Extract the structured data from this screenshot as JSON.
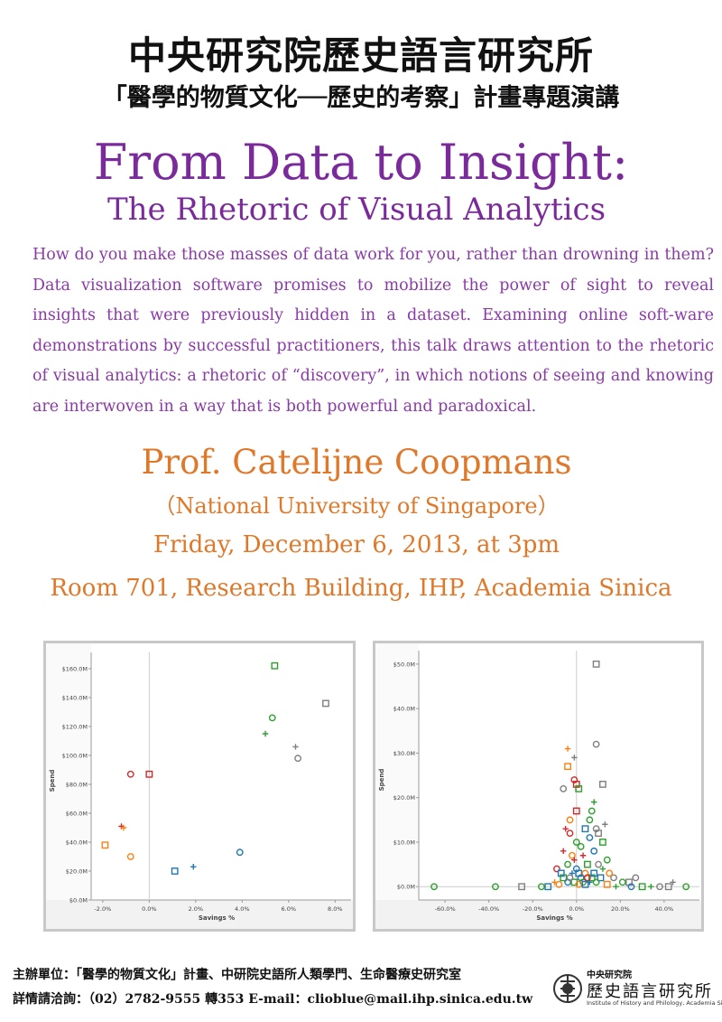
{
  "header": {
    "institute": "中央研究院歷史語言研究所",
    "series": "「醫學的物質文化──歷史的考察」計畫專題演講"
  },
  "talk": {
    "title": "From Data to Insight:",
    "subtitle": "The Rhetoric of Visual Analytics",
    "abstract": "How do you make those masses of data work for you, rather than drowning in them? Data visualization software promises to mobilize the power of sight to reveal insights that were previously hidden in a dataset. Examining online soft-ware demonstrations by successful practitioners, this talk draws attention to the rhetoric of visual analytics: a rhetoric of “discovery”, in which notions of seeing and knowing are interwoven in a way that is both powerful and paradoxical.",
    "speaker": "Prof. Catelijne Coopmans",
    "affiliation": "（National University of Singapore）",
    "date": "Friday, December 6, 2013, at 3pm",
    "location": "Room 701, Research Building, IHP, Academia Sinica"
  },
  "chart_data": [
    {
      "type": "scatter",
      "xlabel": "Savings %",
      "ylabel": "Spend",
      "xlim": [
        -2.5,
        8.3
      ],
      "ylim": [
        0,
        165
      ],
      "xticks": [
        {
          "v": -2,
          "label": "-2.0%"
        },
        {
          "v": 0,
          "label": "0.0%"
        },
        {
          "v": 2,
          "label": "2.0%"
        },
        {
          "v": 4,
          "label": "4.0%"
        },
        {
          "v": 6,
          "label": "6.0%"
        },
        {
          "v": 8,
          "label": "8.0%"
        }
      ],
      "yticks": [
        {
          "v": 0,
          "label": "$0.0M"
        },
        {
          "v": 20,
          "label": "$20.0M"
        },
        {
          "v": 40,
          "label": "$40.0M"
        },
        {
          "v": 60,
          "label": "$60.0M"
        },
        {
          "v": 80,
          "label": "$80.0M"
        },
        {
          "v": 100,
          "label": "$100.0M"
        },
        {
          "v": 120,
          "label": "$120.0M"
        },
        {
          "v": 140,
          "label": "$140.0M"
        },
        {
          "v": 160,
          "label": "$160.0M"
        }
      ],
      "points": [
        {
          "x": 5.4,
          "y": 162,
          "shape": "square",
          "color": "#2ca02c"
        },
        {
          "x": 7.6,
          "y": 136,
          "shape": "square",
          "color": "#7f7f7f"
        },
        {
          "x": 5.3,
          "y": 126,
          "shape": "circle",
          "color": "#2ca02c"
        },
        {
          "x": 5.0,
          "y": 115,
          "shape": "plus",
          "color": "#2ca02c"
        },
        {
          "x": 6.3,
          "y": 106,
          "shape": "plus",
          "color": "#7f7f7f"
        },
        {
          "x": 6.4,
          "y": 98,
          "shape": "circle",
          "color": "#7f7f7f"
        },
        {
          "x": -0.8,
          "y": 87,
          "shape": "circle",
          "color": "#d62728"
        },
        {
          "x": 0.0,
          "y": 87,
          "shape": "square",
          "color": "#d62728"
        },
        {
          "x": -1.2,
          "y": 51,
          "shape": "plus",
          "color": "#d62728"
        },
        {
          "x": -1.1,
          "y": 50,
          "shape": "plus",
          "color": "#ff7f0e"
        },
        {
          "x": -1.9,
          "y": 38,
          "shape": "square",
          "color": "#ff7f0e"
        },
        {
          "x": -0.8,
          "y": 30,
          "shape": "circle",
          "color": "#ff7f0e"
        },
        {
          "x": 3.9,
          "y": 33,
          "shape": "circle",
          "color": "#1f77b4"
        },
        {
          "x": 1.1,
          "y": 20,
          "shape": "square",
          "color": "#1f77b4"
        },
        {
          "x": 1.9,
          "y": 23,
          "shape": "plus",
          "color": "#1f77b4"
        }
      ]
    },
    {
      "type": "scatter",
      "xlabel": "Savings %",
      "ylabel": "Spend",
      "xlim": [
        -72,
        52
      ],
      "ylim": [
        -3,
        51
      ],
      "xticks": [
        {
          "v": -60,
          "label": "-60.0%"
        },
        {
          "v": -40,
          "label": "-40.0%"
        },
        {
          "v": -20,
          "label": "-20.0%"
        },
        {
          "v": 0,
          "label": "0.0%"
        },
        {
          "v": 20,
          "label": "20.0%"
        },
        {
          "v": 40,
          "label": "40.0%"
        }
      ],
      "yticks": [
        {
          "v": 0,
          "label": "$0.0M"
        },
        {
          "v": 10,
          "label": "$10.0M"
        },
        {
          "v": 20,
          "label": "$20.0M"
        },
        {
          "v": 30,
          "label": "$30.0M"
        },
        {
          "v": 40,
          "label": "$40.0M"
        },
        {
          "v": 50,
          "label": "$50.0M"
        }
      ],
      "points": [
        {
          "x": 9,
          "y": 50,
          "shape": "square",
          "color": "#7f7f7f"
        },
        {
          "x": 9,
          "y": 32,
          "shape": "circle",
          "color": "#7f7f7f"
        },
        {
          "x": -4,
          "y": 31,
          "shape": "plus",
          "color": "#ff7f0e"
        },
        {
          "x": -1,
          "y": 29,
          "shape": "plus",
          "color": "#7f7f7f"
        },
        {
          "x": -4,
          "y": 27,
          "shape": "square",
          "color": "#ff7f0e"
        },
        {
          "x": -6,
          "y": 22,
          "shape": "circle",
          "color": "#7f7f7f"
        },
        {
          "x": -1,
          "y": 24,
          "shape": "circle",
          "color": "#d62728"
        },
        {
          "x": 0,
          "y": 23,
          "shape": "square",
          "color": "#d62728"
        },
        {
          "x": 1,
          "y": 22,
          "shape": "square",
          "color": "#2ca02c"
        },
        {
          "x": 12,
          "y": 23,
          "shape": "square",
          "color": "#7f7f7f"
        },
        {
          "x": 8,
          "y": 19,
          "shape": "plus",
          "color": "#2ca02c"
        },
        {
          "x": 7,
          "y": 17,
          "shape": "circle",
          "color": "#2ca02c"
        },
        {
          "x": 0,
          "y": 17,
          "shape": "square",
          "color": "#d62728"
        },
        {
          "x": -3,
          "y": 15,
          "shape": "circle",
          "color": "#ff7f0e"
        },
        {
          "x": 6,
          "y": 15,
          "shape": "circle",
          "color": "#2ca02c"
        },
        {
          "x": 13,
          "y": 14,
          "shape": "plus",
          "color": "#7f7f7f"
        },
        {
          "x": 4,
          "y": 13,
          "shape": "square",
          "color": "#1f77b4"
        },
        {
          "x": -5,
          "y": 13,
          "shape": "plus",
          "color": "#d62728"
        },
        {
          "x": -3,
          "y": 12,
          "shape": "circle",
          "color": "#d62728"
        },
        {
          "x": 10,
          "y": 12,
          "shape": "square",
          "color": "#7f7f7f"
        },
        {
          "x": 9,
          "y": 13,
          "shape": "circle",
          "color": "#7f7f7f"
        },
        {
          "x": 6,
          "y": 11,
          "shape": "circle",
          "color": "#1f77b4"
        },
        {
          "x": 12,
          "y": 10,
          "shape": "square",
          "color": "#2ca02c"
        },
        {
          "x": 2,
          "y": 9,
          "shape": "circle",
          "color": "#2ca02c"
        },
        {
          "x": -6,
          "y": 8,
          "shape": "plus",
          "color": "#d62728"
        },
        {
          "x": 8,
          "y": 8,
          "shape": "circle",
          "color": "#1f77b4"
        },
        {
          "x": -2,
          "y": 7,
          "shape": "circle",
          "color": "#ff7f0e"
        },
        {
          "x": 3,
          "y": 7,
          "shape": "plus",
          "color": "#d62728"
        },
        {
          "x": 14,
          "y": 6,
          "shape": "circle",
          "color": "#2ca02c"
        },
        {
          "x": -4,
          "y": 5,
          "shape": "circle",
          "color": "#2ca02c"
        },
        {
          "x": 5,
          "y": 5,
          "shape": "square",
          "color": "#2ca02c"
        },
        {
          "x": -9,
          "y": 4,
          "shape": "circle",
          "color": "#d62728"
        },
        {
          "x": 10,
          "y": 5,
          "shape": "circle",
          "color": "#7f7f7f"
        },
        {
          "x": 0,
          "y": 4,
          "shape": "circle",
          "color": "#1f77b4"
        },
        {
          "x": 1,
          "y": 3,
          "shape": "square",
          "color": "#1f77b4"
        },
        {
          "x": -2,
          "y": 3,
          "shape": "plus",
          "color": "#1f77b4"
        },
        {
          "x": 4,
          "y": 3,
          "shape": "circle",
          "color": "#ff7f0e"
        },
        {
          "x": 7,
          "y": 2,
          "shape": "square",
          "color": "#2ca02c"
        },
        {
          "x": -6,
          "y": 2,
          "shape": "square",
          "color": "#2ca02c"
        },
        {
          "x": 2,
          "y": 2,
          "shape": "circle",
          "color": "#1f77b4"
        },
        {
          "x": 11,
          "y": 2,
          "shape": "square",
          "color": "#1f77b4"
        },
        {
          "x": 17,
          "y": 2,
          "shape": "circle",
          "color": "#7f7f7f"
        },
        {
          "x": -1,
          "y": 1,
          "shape": "square",
          "color": "#2ca02c"
        },
        {
          "x": 3,
          "y": 1,
          "shape": "circle",
          "color": "#2ca02c"
        },
        {
          "x": 6,
          "y": 1,
          "shape": "plus",
          "color": "#1f77b4"
        },
        {
          "x": -4,
          "y": 1,
          "shape": "circle",
          "color": "#1f77b4"
        },
        {
          "x": 9,
          "y": 1,
          "shape": "circle",
          "color": "#2ca02c"
        },
        {
          "x": 24,
          "y": 1,
          "shape": "square",
          "color": "#7f7f7f"
        },
        {
          "x": 27,
          "y": 2,
          "shape": "circle",
          "color": "#7f7f7f"
        },
        {
          "x": 21,
          "y": 1,
          "shape": "circle",
          "color": "#2ca02c"
        },
        {
          "x": 14,
          "y": 0.5,
          "shape": "square",
          "color": "#ff7f0e"
        },
        {
          "x": -8,
          "y": 0.5,
          "shape": "circle",
          "color": "#ff7f0e"
        },
        {
          "x": -13,
          "y": 0,
          "shape": "square",
          "color": "#1f77b4"
        },
        {
          "x": -16,
          "y": 0,
          "shape": "circle",
          "color": "#2ca02c"
        },
        {
          "x": -25,
          "y": 0,
          "shape": "square",
          "color": "#7f7f7f"
        },
        {
          "x": -37,
          "y": 0,
          "shape": "circle",
          "color": "#2ca02c"
        },
        {
          "x": -65,
          "y": 0,
          "shape": "circle",
          "color": "#2ca02c"
        },
        {
          "x": 30,
          "y": 0,
          "shape": "square",
          "color": "#2ca02c"
        },
        {
          "x": 34,
          "y": 0,
          "shape": "plus",
          "color": "#2ca02c"
        },
        {
          "x": 38,
          "y": 0,
          "shape": "circle",
          "color": "#7f7f7f"
        },
        {
          "x": 42,
          "y": 0,
          "shape": "square",
          "color": "#7f7f7f"
        },
        {
          "x": 44,
          "y": 1,
          "shape": "plus",
          "color": "#7f7f7f"
        },
        {
          "x": 50,
          "y": 0,
          "shape": "circle",
          "color": "#2ca02c"
        },
        {
          "x": 18,
          "y": 0,
          "shape": "plus",
          "color": "#2ca02c"
        },
        {
          "x": 25,
          "y": 0,
          "shape": "circle",
          "color": "#1f77b4"
        },
        {
          "x": -10,
          "y": 1,
          "shape": "plus",
          "color": "#ff7f0e"
        },
        {
          "x": 15,
          "y": 3,
          "shape": "circle",
          "color": "#ff7f0e"
        },
        {
          "x": -7,
          "y": 3,
          "shape": "square",
          "color": "#1f77b4"
        },
        {
          "x": 12,
          "y": 4,
          "shape": "plus",
          "color": "#2ca02c"
        },
        {
          "x": 0,
          "y": 10,
          "shape": "circle",
          "color": "#2ca02c"
        },
        {
          "x": -1,
          "y": 6,
          "shape": "plus",
          "color": "#d62728"
        },
        {
          "x": 5,
          "y": 2,
          "shape": "circle",
          "color": "#d62728"
        },
        {
          "x": -3,
          "y": 2,
          "shape": "circle",
          "color": "#7f7f7f"
        },
        {
          "x": 8,
          "y": 3,
          "shape": "square",
          "color": "#1f77b4"
        },
        {
          "x": 1,
          "y": 0.5,
          "shape": "circle",
          "color": "#ff7f0e"
        },
        {
          "x": 4,
          "y": 0.5,
          "shape": "square",
          "color": "#1f77b4"
        }
      ]
    }
  ],
  "footer": {
    "organizers": "主辦單位：「醫學的物質文化」計畫、中研院史語所人類學門、生命醫療史研究室",
    "contact": "詳情請洽詢：（02）2782-9555 轉353 E-mail：clioblue@mail.ihp.sinica.edu.tw",
    "logo_top": "中央研究院",
    "logo_main": "歷史語言研究所",
    "logo_en": "Institute of History and Philology, Academia Sinica"
  }
}
